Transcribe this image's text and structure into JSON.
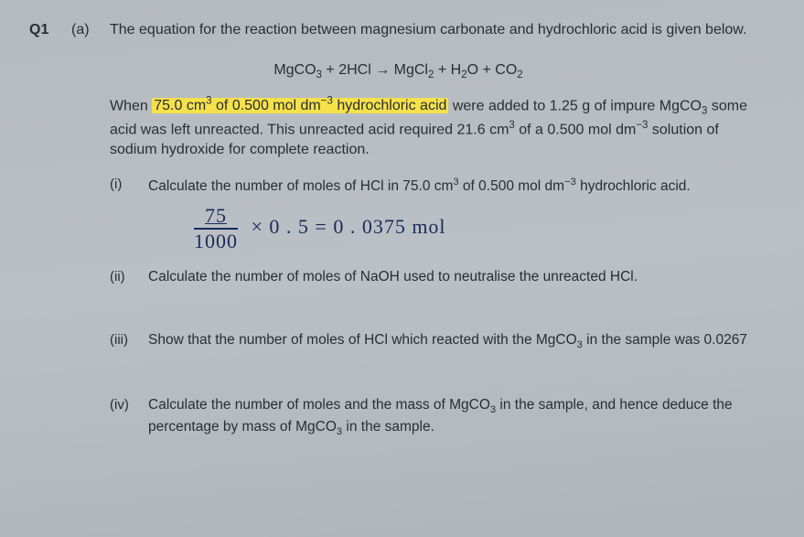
{
  "question_number": "Q1",
  "part_label": "(a)",
  "intro_text": "The equation for the reaction between magnesium carbonate and hydrochloric acid is given below.",
  "equation_plain": "MgCO3 + 2HCl → MgCl2 + H2O + CO2",
  "para_prefix": "When ",
  "highlighted_text": "75.0 cm3 of 0.500 mol dm−3 hydrochloric acid",
  "para_rest": " were added to 1.25 g of impure MgCO3 some acid was left unreacted. This unreacted acid required 21.6 cm3 of a 0.500 mol dm−3 solution of sodium hydroxide for complete reaction.",
  "subparts": {
    "i": {
      "label": "(i)",
      "text": "Calculate the number of moles of HCl in 75.0 cm3 of 0.500 mol dm−3 hydrochloric acid."
    },
    "ii": {
      "label": "(ii)",
      "text": "Calculate the number of moles of NaOH used to neutralise the unreacted HCl."
    },
    "iii": {
      "label": "(iii)",
      "text": "Show that the number of moles of HCl which reacted with the MgCO3 in the sample was 0.0267"
    },
    "iv": {
      "label": "(iv)",
      "text": "Calculate the number of moles and the mass of MgCO3 in the sample, and hence deduce the percentage by mass of MgCO3 in the sample."
    }
  },
  "handwriting": {
    "numerator": "75",
    "denominator": "1000",
    "rest": "× 0 . 5 = 0 . 0375 mol"
  },
  "colors": {
    "background": "#b8bdc2",
    "text": "#2a2e33",
    "highlight": "#f5e14a",
    "handwriting": "#1a2a5a"
  },
  "typography": {
    "body_fontsize_pt": 12,
    "handwriting_fontsize_pt": 16,
    "font_family": "Arial"
  }
}
